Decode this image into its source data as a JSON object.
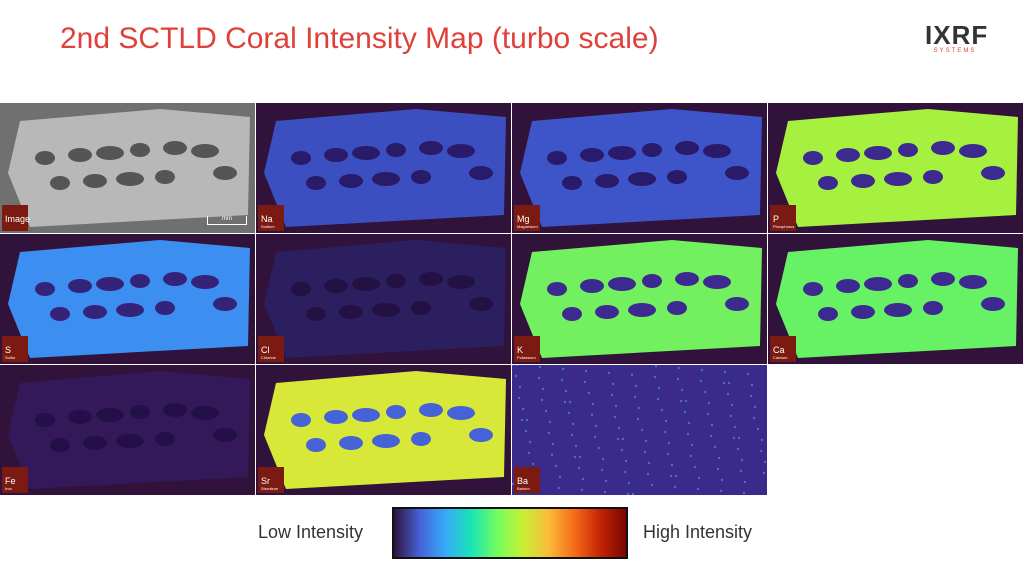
{
  "header": {
    "title": "2nd SCTLD Coral Intensity Map (turbo scale)",
    "logo": "IXRF",
    "logo_sub": "SYSTEMS"
  },
  "tiles": [
    {
      "symbol": "Image",
      "scale": "mm"
    },
    {
      "symbol": "Na",
      "name": "Sodium"
    },
    {
      "symbol": "Mg",
      "name": "Magnesium"
    },
    {
      "symbol": "P",
      "name": "Phosphorus"
    },
    {
      "symbol": "S",
      "name": "Sulfur"
    },
    {
      "symbol": "Cl",
      "name": "Chlorine"
    },
    {
      "symbol": "K",
      "name": "Potassium"
    },
    {
      "symbol": "Ca",
      "name": "Calcium"
    },
    {
      "symbol": "Fe",
      "name": "Iron"
    },
    {
      "symbol": "Sr",
      "name": "Strontium"
    },
    {
      "symbol": "Ba",
      "name": "Barium"
    }
  ],
  "legend": {
    "low": "Low Intensity",
    "high": "High Intensity"
  }
}
